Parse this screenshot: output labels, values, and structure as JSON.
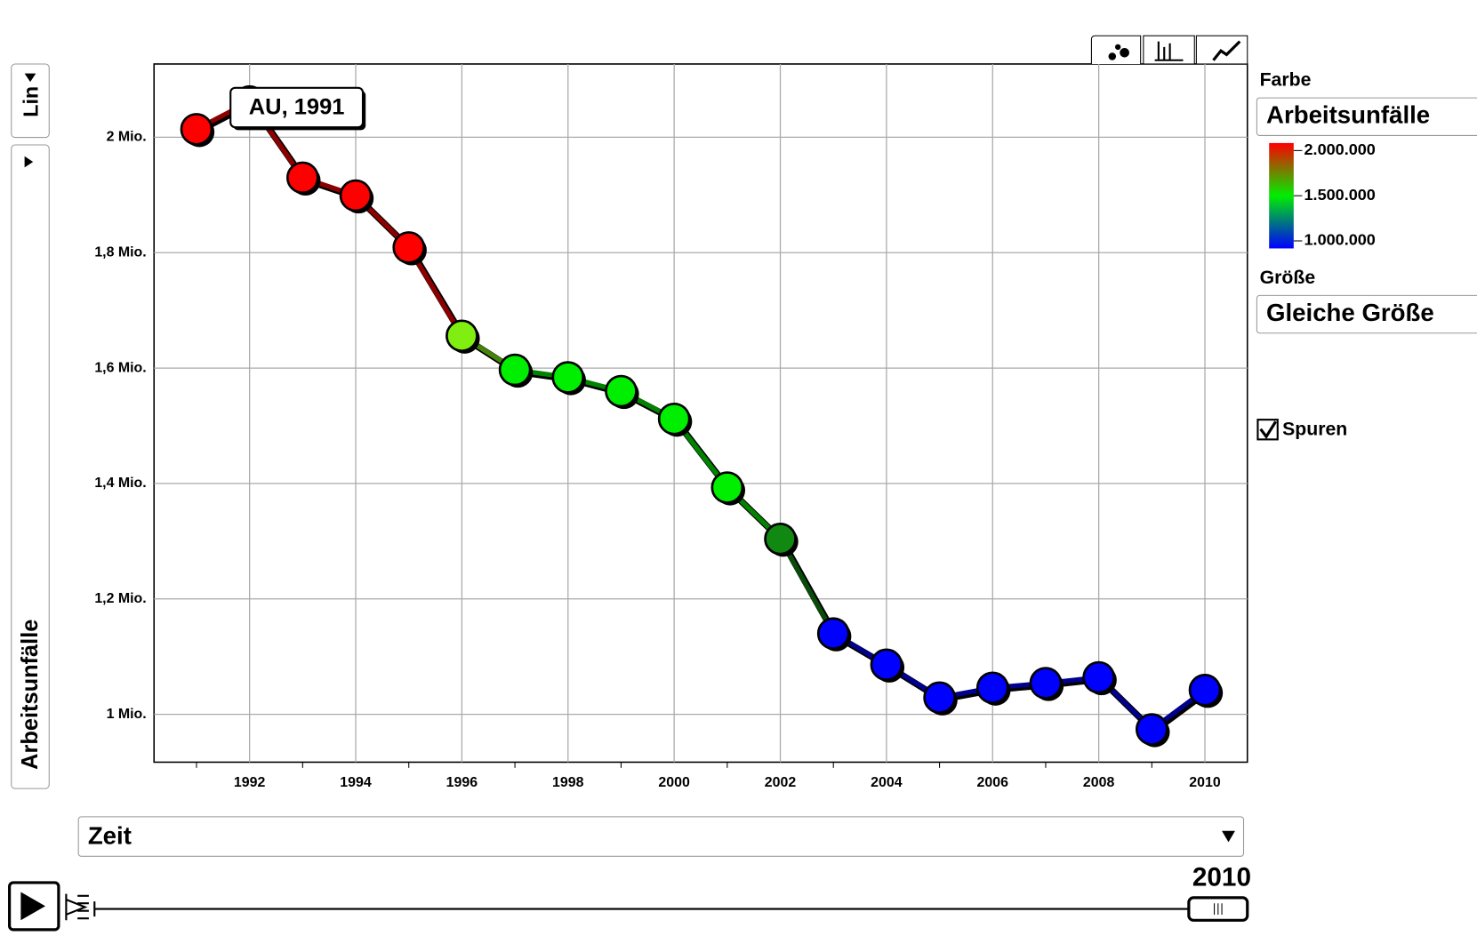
{
  "chart_data": {
    "type": "motion-line",
    "annotation": "AU, 1991",
    "y_axis_label": "Arbeitsunfälle",
    "y_scale_button": "Lin",
    "x_axis_selector": "Zeit",
    "color_label": "Farbe",
    "color_selector": "Arbeitsunfälle",
    "color_scale": [
      {
        "value": 2000000,
        "label": "2.000.000",
        "color": "#ff0000"
      },
      {
        "value": 1500000,
        "label": "1.500.000",
        "color": "#00ee00"
      },
      {
        "value": 1000000,
        "label": "1.000.000",
        "color": "#0000ff"
      }
    ],
    "size_label": "Größe",
    "size_selector": "Gleiche Größe",
    "trails_label": "Spuren",
    "trails": true,
    "slider_value": "2010",
    "x": [
      1991,
      1992,
      1993,
      1994,
      1995,
      1996,
      1997,
      1998,
      1999,
      2000,
      2001,
      2002,
      2003,
      2004,
      2005,
      2006,
      2007,
      2008,
      2009,
      2010
    ],
    "series": [
      {
        "name": "AU",
        "values": [
          2014000,
          2062000,
          1930000,
          1899000,
          1809000,
          1656000,
          1597000,
          1584000,
          1560000,
          1512000,
          1393000,
          1304000,
          1140000,
          1086000,
          1029000,
          1046000,
          1054000,
          1064000,
          974000,
          1042000
        ],
        "colors": [
          "#ff0000",
          "#ff0000",
          "#ff0000",
          "#ff0000",
          "#ff0000",
          "#80ee10",
          "#00ee00",
          "#00ee00",
          "#00ee00",
          "#00ee00",
          "#00ee00",
          "#118811",
          "#0000ff",
          "#0000ff",
          "#0000ff",
          "#0000ff",
          "#0000ff",
          "#0000ff",
          "#0000ff",
          "#0000ff"
        ]
      }
    ],
    "xlim": [
      1990.2,
      2010.8
    ],
    "ylim": [
      917000,
      2127000
    ],
    "xticks": [
      1992,
      1994,
      1996,
      1998,
      2000,
      2002,
      2004,
      2006,
      2008,
      2010
    ],
    "yticks": [
      {
        "value": 1000000,
        "label": "1 Mio."
      },
      {
        "value": 1200000,
        "label": "1,2 Mio."
      },
      {
        "value": 1400000,
        "label": "1,4 Mio."
      },
      {
        "value": 1600000,
        "label": "1,6 Mio."
      },
      {
        "value": 1800000,
        "label": "1,8 Mio."
      },
      {
        "value": 2000000,
        "label": "2 Mio."
      }
    ],
    "grid": true
  }
}
